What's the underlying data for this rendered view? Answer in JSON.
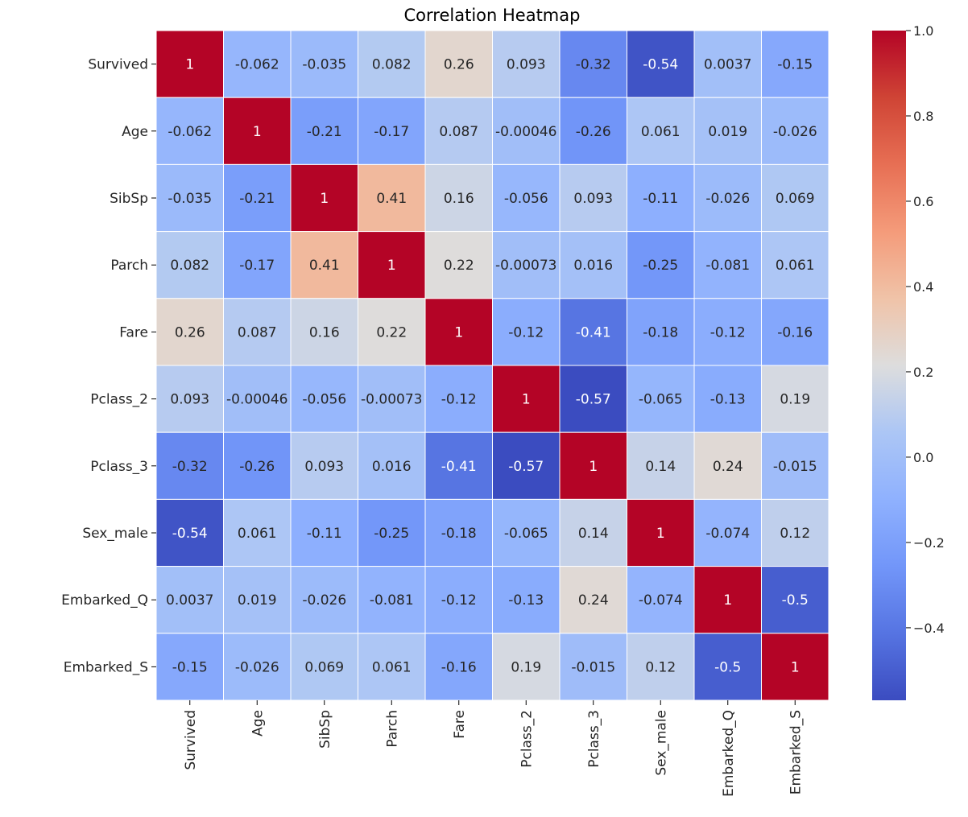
{
  "chart_data": {
    "type": "heatmap",
    "title": "Correlation Heatmap",
    "rows": [
      "Survived",
      "Age",
      "SibSp",
      "Parch",
      "Fare",
      "Pclass_2",
      "Pclass_3",
      "Sex_male",
      "Embarked_Q",
      "Embarked_S"
    ],
    "columns": [
      "Survived",
      "Age",
      "SibSp",
      "Parch",
      "Fare",
      "Pclass_2",
      "Pclass_3",
      "Sex_male",
      "Embarked_Q",
      "Embarked_S"
    ],
    "values": [
      [
        1,
        -0.062,
        -0.035,
        0.082,
        0.26,
        0.093,
        -0.32,
        -0.54,
        0.0037,
        -0.15
      ],
      [
        -0.062,
        1,
        -0.21,
        -0.17,
        0.087,
        -0.00046,
        -0.26,
        0.061,
        0.019,
        -0.026
      ],
      [
        -0.035,
        -0.21,
        1,
        0.41,
        0.16,
        -0.056,
        0.093,
        -0.11,
        -0.026,
        0.069
      ],
      [
        0.082,
        -0.17,
        0.41,
        1,
        0.22,
        -0.00073,
        0.016,
        -0.25,
        -0.081,
        0.061
      ],
      [
        0.26,
        0.087,
        0.16,
        0.22,
        1,
        -0.12,
        -0.41,
        -0.18,
        -0.12,
        -0.16
      ],
      [
        0.093,
        -0.00046,
        -0.056,
        -0.00073,
        -0.12,
        1,
        -0.57,
        -0.065,
        -0.13,
        0.19
      ],
      [
        -0.32,
        -0.26,
        0.093,
        0.016,
        -0.41,
        -0.57,
        1,
        0.14,
        0.24,
        -0.015
      ],
      [
        -0.54,
        0.061,
        -0.11,
        -0.25,
        -0.18,
        -0.065,
        0.14,
        1,
        -0.074,
        0.12
      ],
      [
        0.0037,
        0.019,
        -0.026,
        -0.081,
        -0.12,
        -0.13,
        0.24,
        -0.074,
        1,
        -0.5
      ],
      [
        -0.15,
        -0.026,
        0.069,
        0.061,
        -0.16,
        0.19,
        -0.015,
        0.12,
        -0.5,
        1
      ]
    ],
    "labels": [
      [
        "1",
        "-0.062",
        "-0.035",
        "0.082",
        "0.26",
        "0.093",
        "-0.32",
        "-0.54",
        "0.0037",
        "-0.15"
      ],
      [
        "-0.062",
        "1",
        "-0.21",
        "-0.17",
        "0.087",
        "-0.00046",
        "-0.26",
        "0.061",
        "0.019",
        "-0.026"
      ],
      [
        "-0.035",
        "-0.21",
        "1",
        "0.41",
        "0.16",
        "-0.056",
        "0.093",
        "-0.11",
        "-0.026",
        "0.069"
      ],
      [
        "0.082",
        "-0.17",
        "0.41",
        "1",
        "0.22",
        "-0.00073",
        "0.016",
        "-0.25",
        "-0.081",
        "0.061"
      ],
      [
        "0.26",
        "0.087",
        "0.16",
        "0.22",
        "1",
        "-0.12",
        "-0.41",
        "-0.18",
        "-0.12",
        "-0.16"
      ],
      [
        "0.093",
        "-0.00046",
        "-0.056",
        "-0.00073",
        "-0.12",
        "1",
        "-0.57",
        "-0.065",
        "-0.13",
        "0.19"
      ],
      [
        "-0.32",
        "-0.26",
        "0.093",
        "0.016",
        "-0.41",
        "-0.57",
        "1",
        "0.14",
        "0.24",
        "-0.015"
      ],
      [
        "-0.54",
        "0.061",
        "-0.11",
        "-0.25",
        "-0.18",
        "-0.065",
        "0.14",
        "1",
        "-0.074",
        "0.12"
      ],
      [
        "0.0037",
        "0.019",
        "-0.026",
        "-0.081",
        "-0.12",
        "-0.13",
        "0.24",
        "-0.074",
        "1",
        "-0.5"
      ],
      [
        "-0.15",
        "-0.026",
        "0.069",
        "0.061",
        "-0.16",
        "0.19",
        "-0.015",
        "0.12",
        "-0.5",
        "1"
      ]
    ],
    "colormap": "coolwarm",
    "colorbar": {
      "vmin": -0.57,
      "vmax": 1.0,
      "ticks": [
        1.0,
        0.8,
        0.6,
        0.4,
        0.2,
        0.0,
        -0.2,
        -0.4
      ],
      "tick_labels": [
        "1.0",
        "0.8",
        "0.6",
        "0.4",
        "0.2",
        "0.0",
        "−0.2",
        "−0.4"
      ]
    },
    "colors": {
      "grid_line": "#ffffff",
      "text_dark": "#262626",
      "text_light": "#ffffff"
    }
  }
}
